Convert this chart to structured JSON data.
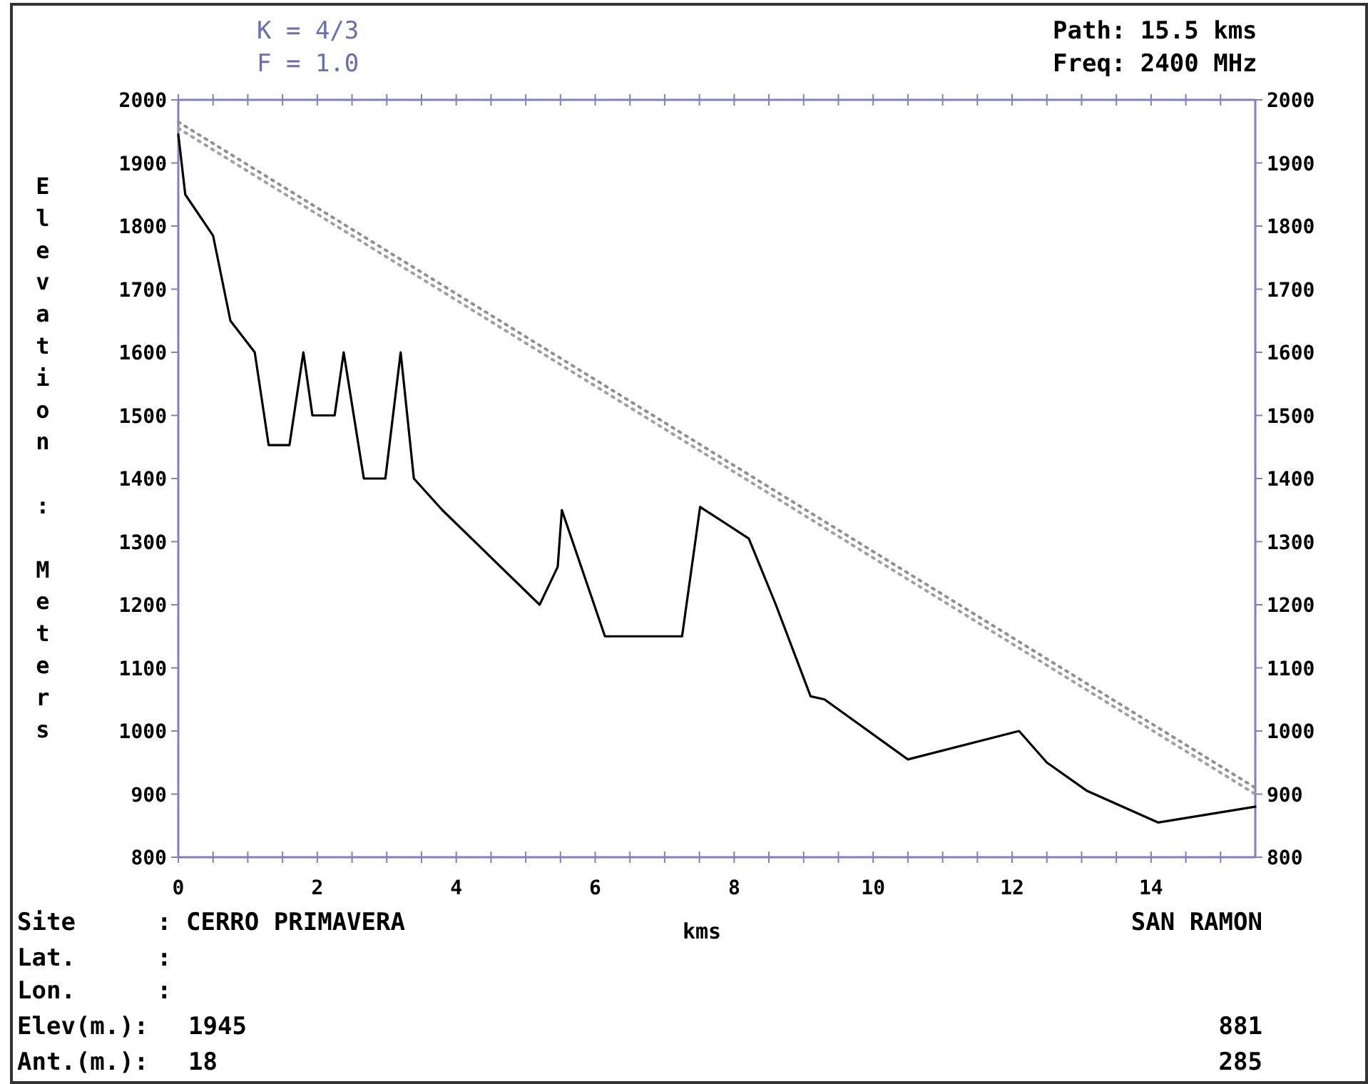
{
  "chart_data": {
    "type": "line",
    "xlabel": "kms",
    "ylabel": "Elevation : Meters",
    "annotations": [
      "K = 4/3",
      "F = 1.0",
      "Path: 15.5 kms",
      "Freq: 2400 MHz",
      "Site",
      ": CERRO PRIMAVERA",
      "SAN RAMON",
      "Lat.",
      ":",
      "Lon.",
      ":",
      "Elev(m.):",
      "1945",
      "881",
      "Ant.(m.):",
      "18",
      "285"
    ],
    "xlim": [
      0,
      15.5
    ],
    "xticks": [
      0,
      {
        "value": 0.5,
        "label": null
      },
      {
        "value": 1,
        "label": null
      },
      {
        "value": 1.5,
        "label": null
      },
      2,
      {
        "value": 2.5,
        "label": null
      },
      {
        "value": 3,
        "label": null
      },
      {
        "value": 3.5,
        "label": null
      },
      4,
      {
        "value": 4.5,
        "label": null
      },
      {
        "value": 5,
        "label": null
      },
      {
        "value": 5.5,
        "label": null
      },
      6,
      {
        "value": 6.5,
        "label": null
      },
      {
        "value": 7,
        "label": null
      },
      {
        "value": 7.5,
        "label": null
      },
      8,
      {
        "value": 8.5,
        "label": null
      },
      {
        "value": 9,
        "label": null
      },
      {
        "value": 9.5,
        "label": null
      },
      10,
      {
        "value": 10.5,
        "label": null
      },
      {
        "value": 11,
        "label": null
      },
      {
        "value": 11.5,
        "label": null
      },
      12,
      {
        "value": 12.5,
        "label": null
      },
      {
        "value": 13,
        "label": null
      },
      {
        "value": 13.5,
        "label": null
      },
      14,
      {
        "value": 14.5,
        "label": null
      },
      {
        "value": 15,
        "label": null
      }
    ],
    "ylim": [
      800,
      2000
    ],
    "yticks": [
      800,
      900,
      1000,
      1100,
      1200,
      1300,
      1400,
      1500,
      1600,
      1700,
      1800,
      1900,
      2000
    ],
    "y2lim": [
      800,
      2000
    ],
    "y2ticks": [
      800,
      900,
      1000,
      1100,
      1200,
      1300,
      1400,
      1500,
      1600,
      1700,
      1800,
      1900,
      2000
    ],
    "grid": false,
    "marker": "none",
    "series": [
      {
        "color": "#000000",
        "line_style": "solid",
        "x": [
          0,
          0.1,
          0.5,
          0.75,
          1.1,
          1.3,
          1.6,
          1.8,
          1.93,
          2.25,
          2.38,
          2.67,
          2.98,
          3.2,
          3.39,
          3.8,
          5.2,
          5.46,
          5.52,
          6.14,
          7.25,
          7.51,
          8.21,
          8.6,
          9.1,
          9.3,
          10.5,
          12.1,
          12.5,
          13.08,
          14.1,
          15.5
        ],
        "values": [
          1945,
          1850,
          1785,
          1650,
          1600,
          1453,
          1453,
          1600,
          1500,
          1500,
          1600,
          1400,
          1400,
          1600,
          1400,
          1350,
          1200,
          1260,
          1350,
          1150,
          1150,
          1355,
          1305,
          1200,
          1055,
          1050,
          955,
          1000,
          950,
          905,
          855,
          880
        ]
      },
      {
        "color": "#909090",
        "line_style": "dotted",
        "x": [
          0,
          15.5
        ],
        "values": [
          1965,
          910
        ]
      },
      {
        "color": "#a0a0a0",
        "line_style": "dotted",
        "x": [
          0,
          15.5
        ],
        "values": [
          1955,
          900
        ]
      }
    ]
  }
}
